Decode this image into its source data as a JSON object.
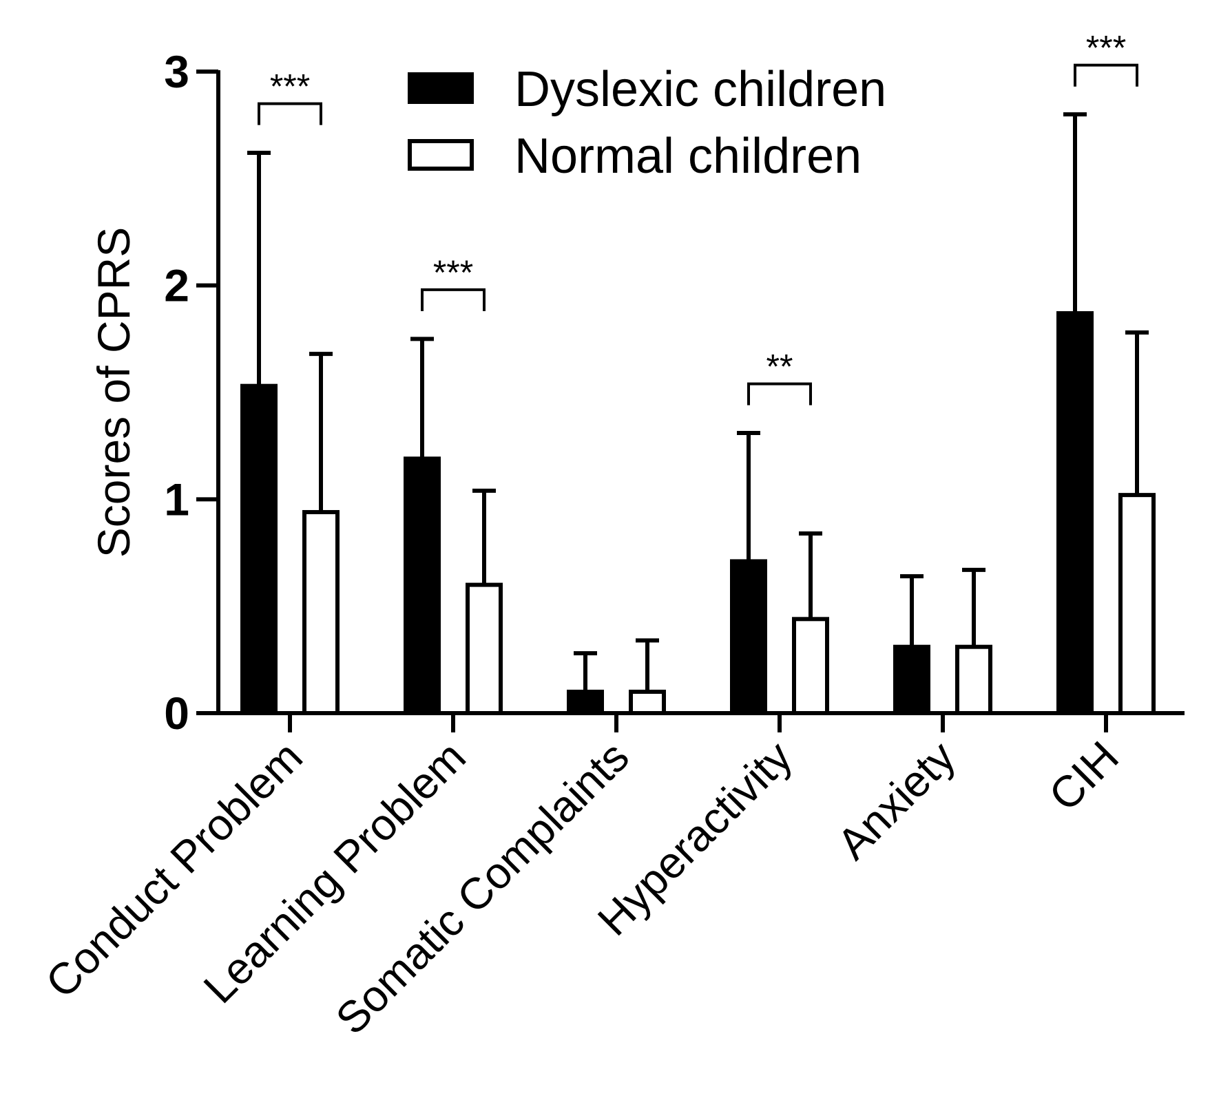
{
  "chart_data": {
    "type": "bar",
    "title": "",
    "xlabel": "",
    "ylabel": "Scores of CPRS",
    "ylim": [
      0,
      3
    ],
    "yticks": [
      "0",
      "1",
      "2",
      "3"
    ],
    "categories": [
      "Conduct Problem",
      "Learning Problem",
      "Somatic Complaints",
      "Hyperactivity",
      "Anxiety",
      "CIH"
    ],
    "series": [
      {
        "name": "Dyslexic children",
        "fill": "#000000",
        "values": [
          1.53,
          1.19,
          0.1,
          0.71,
          0.31,
          1.87
        ],
        "errors": [
          1.09,
          0.56,
          0.18,
          0.6,
          0.33,
          0.93
        ]
      },
      {
        "name": "Normal children",
        "fill": "#ffffff",
        "values": [
          0.94,
          0.6,
          0.1,
          0.44,
          0.31,
          1.02
        ],
        "errors": [
          0.74,
          0.44,
          0.24,
          0.4,
          0.36,
          0.76
        ]
      }
    ],
    "significance": [
      {
        "category": "Conduct Problem",
        "label": "***"
      },
      {
        "category": "Learning Problem",
        "label": "***"
      },
      {
        "category": "Hyperactivity",
        "label": "**"
      },
      {
        "category": "CIH",
        "label": "***"
      }
    ],
    "legend_position": "top-center",
    "grid": false
  }
}
